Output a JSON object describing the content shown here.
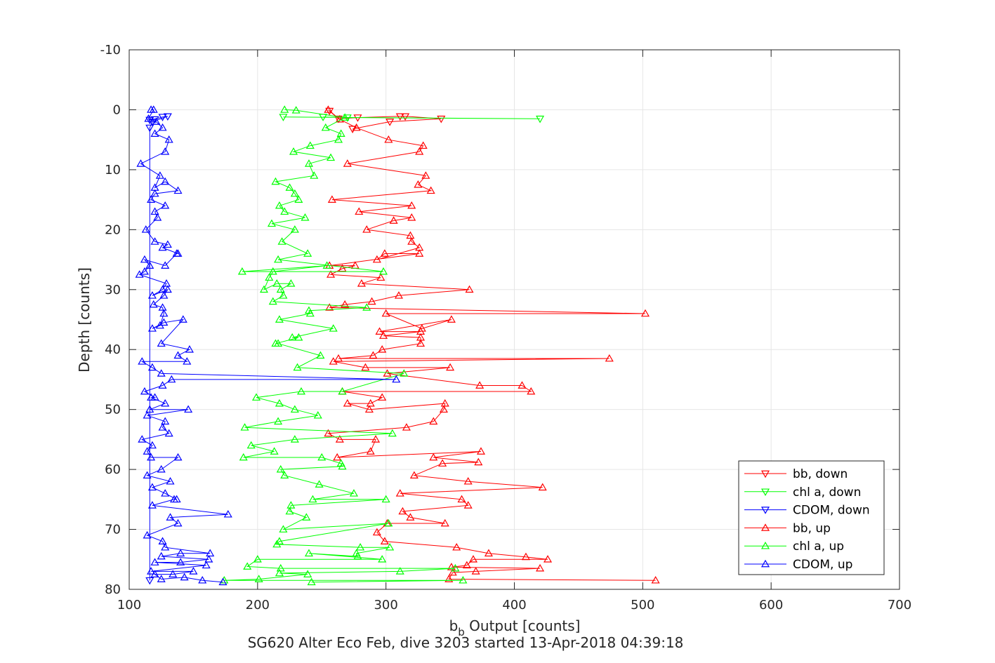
{
  "chart_data": {
    "type": "line",
    "xlabel_main": "b",
    "xlabel_sub": "b",
    "xlabel_rest": " Output [counts]",
    "ylabel": "Depth [counts]",
    "caption": "SG620 Alter Eco Feb, dive 3203 started 13-Apr-2018 04:39:18",
    "xlim": [
      100,
      700
    ],
    "ylim": [
      -10,
      80
    ],
    "y_reversed": true,
    "grid": true,
    "legend_position": "bottom-right",
    "x_ticks": [
      "100",
      "200",
      "300",
      "400",
      "500",
      "600",
      "700"
    ],
    "y_ticks": [
      "-10",
      "0",
      "10",
      "20",
      "30",
      "40",
      "50",
      "60",
      "70",
      "80"
    ],
    "x_tick_values": [
      100,
      200,
      300,
      400,
      500,
      600,
      700
    ],
    "y_tick_values": [
      -10,
      0,
      10,
      20,
      30,
      40,
      50,
      60,
      70,
      80
    ],
    "colors": {
      "bb": "#ff0000",
      "chl": "#00ff00",
      "cdom": "#0000ff",
      "grid": "#e6e6e6",
      "axis": "#262626"
    },
    "series": [
      {
        "name": "bb, down",
        "color": "#ff0000",
        "marker": "down",
        "points": [
          [
            256,
            0.2
          ],
          [
            263,
            1.5
          ],
          [
            278,
            1.3
          ],
          [
            311,
            1.1
          ],
          [
            315,
            1.1
          ],
          [
            343,
            1.5
          ],
          [
            303,
            2
          ],
          [
            274,
            3.2
          ]
        ]
      },
      {
        "name": "chl a, down",
        "color": "#00ff00",
        "marker": "down",
        "points": [
          [
            220,
            1.2
          ],
          [
            420,
            1.5
          ],
          [
            270,
            1.3
          ],
          [
            251,
            1.2
          ]
        ]
      },
      {
        "name": "CDOM, down",
        "color": "#0000ff",
        "marker": "down",
        "points": [
          [
            116,
            1.7
          ],
          [
            120,
            1.6
          ],
          [
            126,
            1.2
          ],
          [
            130,
            1.1
          ],
          [
            118,
            2
          ],
          [
            116,
            3
          ],
          [
            116,
            78.5
          ]
        ]
      },
      {
        "name": "bb, up",
        "color": "#ff0000",
        "marker": "up",
        "points": [
          [
            510,
            78.5
          ],
          [
            349,
            78.3
          ],
          [
            352,
            77.2
          ],
          [
            370,
            77
          ],
          [
            420,
            76.5
          ],
          [
            351,
            76.3
          ],
          [
            363,
            76
          ],
          [
            368,
            75
          ],
          [
            426,
            75
          ],
          [
            409,
            74.6
          ],
          [
            380,
            74
          ],
          [
            355,
            73
          ],
          [
            299,
            72
          ],
          [
            293,
            70.5
          ],
          [
            301,
            69
          ],
          [
            346,
            69
          ],
          [
            319,
            68
          ],
          [
            313,
            67
          ],
          [
            364,
            66
          ],
          [
            359,
            65
          ],
          [
            311,
            64
          ],
          [
            422,
            63
          ],
          [
            364,
            62
          ],
          [
            322,
            61
          ],
          [
            344,
            59
          ],
          [
            372,
            58.8
          ],
          [
            337,
            58
          ],
          [
            374,
            57
          ],
          [
            262,
            58
          ],
          [
            288,
            57
          ],
          [
            292,
            55
          ],
          [
            264,
            55
          ],
          [
            255,
            54
          ],
          [
            316,
            53
          ],
          [
            337,
            52
          ],
          [
            345,
            50
          ],
          [
            346,
            49
          ],
          [
            287,
            50
          ],
          [
            270,
            49
          ],
          [
            288,
            49
          ],
          [
            297,
            48
          ],
          [
            266,
            47
          ],
          [
            413,
            47
          ],
          [
            406,
            46
          ],
          [
            373,
            46
          ],
          [
            301,
            44
          ],
          [
            350,
            43
          ],
          [
            284,
            43
          ],
          [
            259,
            42
          ],
          [
            474,
            41.5
          ],
          [
            263,
            41.5
          ],
          [
            290,
            41
          ],
          [
            297,
            40
          ],
          [
            327,
            39
          ],
          [
            327,
            38
          ],
          [
            298,
            37.7
          ],
          [
            327,
            37
          ],
          [
            295,
            37
          ],
          [
            351,
            35
          ],
          [
            328,
            36.5
          ],
          [
            300,
            34
          ],
          [
            502,
            34
          ],
          [
            256,
            33
          ],
          [
            268,
            32.5
          ],
          [
            289,
            32
          ],
          [
            310,
            31
          ],
          [
            365,
            30
          ],
          [
            281,
            29
          ],
          [
            296,
            28
          ],
          [
            257,
            27.5
          ],
          [
            266,
            26.5
          ],
          [
            276,
            26
          ],
          [
            256,
            26
          ],
          [
            326,
            24
          ],
          [
            299,
            24
          ],
          [
            293,
            25
          ],
          [
            326,
            23
          ],
          [
            320,
            22
          ],
          [
            319,
            21
          ],
          [
            285,
            20
          ],
          [
            306,
            18.5
          ],
          [
            320,
            18
          ],
          [
            279,
            17
          ],
          [
            320,
            16
          ],
          [
            258,
            15
          ],
          [
            335,
            13.5
          ],
          [
            325,
            12.5
          ],
          [
            331,
            11
          ],
          [
            270,
            9
          ],
          [
            326,
            7
          ],
          [
            329,
            6
          ],
          [
            302,
            5
          ],
          [
            277,
            3
          ],
          [
            264,
            1.6
          ],
          [
            255,
            0
          ]
        ]
      },
      {
        "name": "chl a, up",
        "color": "#00ff00",
        "marker": "up",
        "points": [
          [
            242,
            78.8
          ],
          [
            360,
            78.5
          ],
          [
            174,
            78.5
          ],
          [
            201,
            78.3
          ],
          [
            239,
            77.5
          ],
          [
            217,
            77.3
          ],
          [
            311,
            77
          ],
          [
            354,
            76.5
          ],
          [
            218,
            76.5
          ],
          [
            192,
            76.2
          ],
          [
            200,
            75
          ],
          [
            297,
            75
          ],
          [
            240,
            74
          ],
          [
            278,
            74.5
          ],
          [
            277,
            74
          ],
          [
            303,
            73
          ],
          [
            280,
            73
          ],
          [
            215,
            72.5
          ],
          [
            217,
            72
          ],
          [
            302,
            69
          ],
          [
            220,
            70
          ],
          [
            238,
            68
          ],
          [
            225,
            67
          ],
          [
            226,
            66
          ],
          [
            300,
            65
          ],
          [
            243,
            65
          ],
          [
            275,
            64
          ],
          [
            248,
            62.5
          ],
          [
            221,
            61
          ],
          [
            218,
            60
          ],
          [
            266,
            59.5
          ],
          [
            265,
            59
          ],
          [
            250,
            58
          ],
          [
            189,
            58
          ],
          [
            213,
            57
          ],
          [
            195,
            56
          ],
          [
            229,
            55
          ],
          [
            305,
            54
          ],
          [
            190,
            53
          ],
          [
            216,
            52
          ],
          [
            247,
            51
          ],
          [
            229,
            50
          ],
          [
            217,
            49
          ],
          [
            199,
            48
          ],
          [
            234,
            47
          ],
          [
            266,
            47
          ],
          [
            314,
            44
          ],
          [
            231,
            43
          ],
          [
            249,
            41
          ],
          [
            216,
            39
          ],
          [
            214,
            39
          ],
          [
            232,
            38
          ],
          [
            227,
            38
          ],
          [
            259,
            36.5
          ],
          [
            217,
            35
          ],
          [
            241,
            34
          ],
          [
            240,
            33.5
          ],
          [
            285,
            33
          ],
          [
            212,
            32
          ],
          [
            220,
            31
          ],
          [
            218,
            30
          ],
          [
            226,
            29
          ],
          [
            215,
            29
          ],
          [
            205,
            30
          ],
          [
            209,
            28
          ],
          [
            212,
            27
          ],
          [
            254,
            26
          ],
          [
            188,
            27
          ],
          [
            298,
            27
          ],
          [
            216,
            25
          ],
          [
            239,
            24
          ],
          [
            219,
            22
          ],
          [
            229,
            20
          ],
          [
            211,
            19
          ],
          [
            237,
            18
          ],
          [
            221,
            17
          ],
          [
            217,
            16
          ],
          [
            232,
            15
          ],
          [
            229,
            14
          ],
          [
            225,
            13
          ],
          [
            214,
            12
          ],
          [
            244,
            11
          ],
          [
            240,
            9
          ],
          [
            257,
            8
          ],
          [
            228,
            7
          ],
          [
            241,
            6
          ],
          [
            263,
            5
          ],
          [
            265,
            4
          ],
          [
            253,
            3
          ],
          [
            268,
            1.3
          ],
          [
            230,
            0.1
          ],
          [
            221,
            0
          ]
        ]
      },
      {
        "name": "CDOM, up",
        "color": "#0000ff",
        "marker": "up",
        "points": [
          [
            173,
            78.8
          ],
          [
            157,
            78.5
          ],
          [
            143,
            78
          ],
          [
            125,
            78.3
          ],
          [
            120,
            77.5
          ],
          [
            134,
            77.5
          ],
          [
            150,
            77
          ],
          [
            117,
            77
          ],
          [
            160,
            76
          ],
          [
            120,
            75.5
          ],
          [
            140,
            75.5
          ],
          [
            162,
            75
          ],
          [
            125,
            74.5
          ],
          [
            140,
            74
          ],
          [
            163,
            74
          ],
          [
            128,
            73
          ],
          [
            126,
            72
          ],
          [
            114,
            71
          ],
          [
            138,
            69
          ],
          [
            132,
            68
          ],
          [
            177,
            67.5
          ],
          [
            118,
            66
          ],
          [
            135,
            65
          ],
          [
            137,
            65
          ],
          [
            128,
            64
          ],
          [
            118,
            63
          ],
          [
            132,
            62
          ],
          [
            114,
            61
          ],
          [
            125,
            60
          ],
          [
            138,
            58
          ],
          [
            117,
            58
          ],
          [
            114,
            57
          ],
          [
            118,
            56
          ],
          [
            110,
            55
          ],
          [
            131,
            54
          ],
          [
            126,
            53
          ],
          [
            128,
            52
          ],
          [
            114,
            51
          ],
          [
            146,
            50
          ],
          [
            116,
            50
          ],
          [
            128,
            49
          ],
          [
            117,
            48
          ],
          [
            120,
            48
          ],
          [
            112,
            47
          ],
          [
            126,
            46
          ],
          [
            133,
            45
          ],
          [
            308,
            45
          ],
          [
            125,
            44
          ],
          [
            118,
            43
          ],
          [
            110,
            42
          ],
          [
            145,
            42
          ],
          [
            138,
            41
          ],
          [
            147,
            40
          ],
          [
            125,
            39
          ],
          [
            142,
            35
          ],
          [
            127,
            35.5
          ],
          [
            118,
            36.5
          ],
          [
            124,
            36
          ],
          [
            127,
            34
          ],
          [
            126,
            33
          ],
          [
            119,
            32.5
          ],
          [
            127,
            31
          ],
          [
            130,
            30
          ],
          [
            118,
            31
          ],
          [
            126,
            30
          ],
          [
            129,
            29
          ],
          [
            108,
            27.5
          ],
          [
            112,
            27
          ],
          [
            116,
            26
          ],
          [
            112,
            25
          ],
          [
            128,
            26
          ],
          [
            137,
            24
          ],
          [
            138,
            24
          ],
          [
            126,
            23
          ],
          [
            130,
            22.5
          ],
          [
            120,
            22
          ],
          [
            113,
            20
          ],
          [
            122,
            18
          ],
          [
            120,
            17
          ],
          [
            128,
            16
          ],
          [
            117,
            15
          ],
          [
            120,
            14
          ],
          [
            138,
            13.5
          ],
          [
            128,
            12
          ],
          [
            120,
            13
          ],
          [
            124,
            11
          ],
          [
            109,
            9
          ],
          [
            128,
            7
          ],
          [
            131,
            5
          ],
          [
            120,
            4
          ],
          [
            126,
            3
          ],
          [
            121,
            2
          ],
          [
            115,
            1.5
          ],
          [
            119,
            0
          ],
          [
            117,
            0
          ]
        ]
      }
    ]
  }
}
